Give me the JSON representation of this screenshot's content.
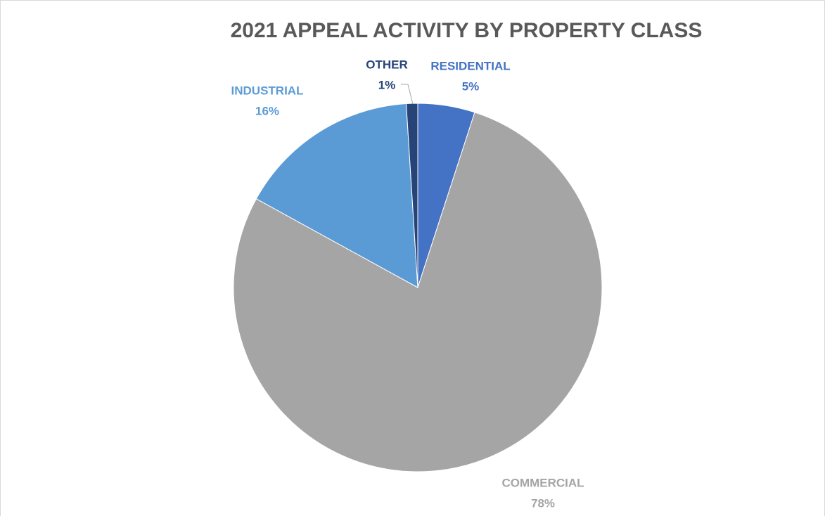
{
  "chart_data": {
    "type": "pie",
    "title": "2021 APPEAL ACTIVITY BY PROPERTY CLASS",
    "categories": [
      "RESIDENTIAL",
      "COMMERCIAL",
      "INDUSTRIAL",
      "OTHER"
    ],
    "values": [
      5,
      78,
      16,
      1
    ],
    "value_labels": [
      "5%",
      "78%",
      "16%",
      "1%"
    ],
    "colors": [
      "#4472c4",
      "#a5a5a5",
      "#5b9bd5",
      "#264478"
    ]
  }
}
